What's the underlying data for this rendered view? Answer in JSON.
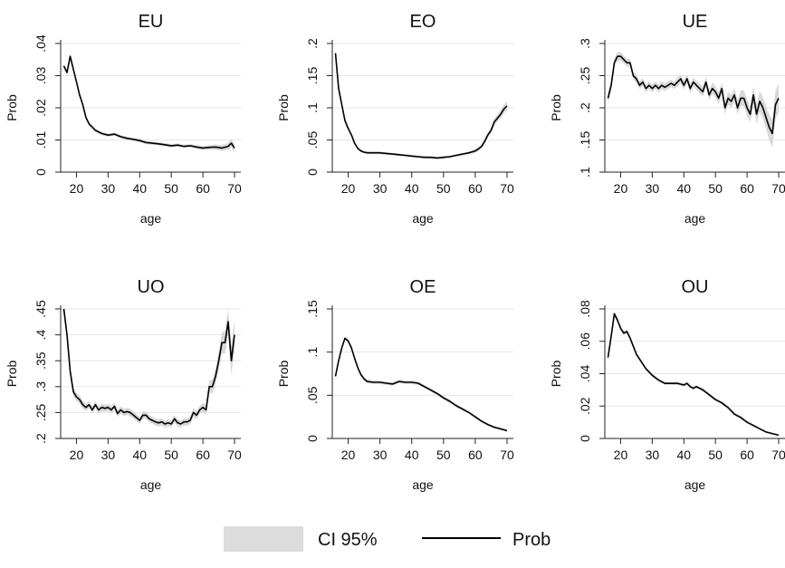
{
  "legend": {
    "ci_label": "CI 95%",
    "line_label": "Prob"
  },
  "style": {
    "band_color": "#d9d9d9",
    "line_color": "#000000",
    "grid_color": "#e6e6e6",
    "axis_color": "#222222"
  },
  "chart_data": [
    {
      "type": "line",
      "title": "EU",
      "xlabel": "age",
      "ylabel": "Prob",
      "xlim": [
        15,
        72
      ],
      "ylim": [
        0,
        0.04
      ],
      "xticks": [
        20,
        30,
        40,
        50,
        60,
        70
      ],
      "xtick_labels": [
        "20",
        "30",
        "40",
        "50",
        "60",
        "70"
      ],
      "yticks": [
        0,
        0.01,
        0.02,
        0.03,
        0.04
      ],
      "ytick_labels": [
        "0",
        ".01",
        ".02",
        ".03",
        ".04"
      ],
      "grid": true,
      "x": [
        16,
        17,
        18,
        19,
        20,
        21,
        22,
        23,
        24,
        25,
        26,
        28,
        30,
        32,
        34,
        36,
        38,
        40,
        42,
        44,
        46,
        48,
        50,
        52,
        54,
        56,
        58,
        60,
        62,
        64,
        66,
        68,
        69,
        70
      ],
      "y": [
        0.033,
        0.031,
        0.036,
        0.032,
        0.028,
        0.024,
        0.021,
        0.017,
        0.015,
        0.014,
        0.013,
        0.012,
        0.0115,
        0.0118,
        0.011,
        0.0105,
        0.0102,
        0.0098,
        0.0092,
        0.009,
        0.0088,
        0.0085,
        0.0082,
        0.0084,
        0.008,
        0.0082,
        0.0078,
        0.0075,
        0.0077,
        0.0078,
        0.0075,
        0.008,
        0.009,
        0.0075
      ],
      "ci_halfwidth": [
        0.0008,
        0.0008,
        0.0008,
        0.0007,
        0.0007,
        0.0007,
        0.0006,
        0.0006,
        0.0006,
        0.0005,
        0.0005,
        0.0005,
        0.0005,
        0.0005,
        0.0005,
        0.0005,
        0.0005,
        0.0005,
        0.0005,
        0.0005,
        0.0005,
        0.0005,
        0.0005,
        0.0005,
        0.0005,
        0.0005,
        0.0006,
        0.0006,
        0.0007,
        0.0008,
        0.0009,
        0.0011,
        0.0013,
        0.0014
      ],
      "series": [
        {
          "name": "Prob"
        }
      ]
    },
    {
      "type": "line",
      "title": "EO",
      "xlabel": "age",
      "ylabel": "Prob",
      "xlim": [
        15,
        72
      ],
      "ylim": [
        0,
        0.2
      ],
      "xticks": [
        20,
        30,
        40,
        50,
        60,
        70
      ],
      "xtick_labels": [
        "20",
        "30",
        "40",
        "50",
        "60",
        "70"
      ],
      "yticks": [
        0,
        0.05,
        0.1,
        0.15,
        0.2
      ],
      "ytick_labels": [
        "0",
        ".05",
        ".1",
        ".15",
        ".2"
      ],
      "grid": true,
      "x": [
        16,
        17,
        18,
        19,
        20,
        21,
        22,
        23,
        24,
        25,
        26,
        28,
        30,
        32,
        34,
        36,
        38,
        40,
        42,
        44,
        46,
        48,
        50,
        52,
        54,
        56,
        58,
        60,
        61,
        62,
        63,
        64,
        65,
        66,
        67,
        68,
        69,
        70
      ],
      "y": [
        0.185,
        0.13,
        0.105,
        0.08,
        0.068,
        0.058,
        0.045,
        0.037,
        0.033,
        0.031,
        0.03,
        0.03,
        0.03,
        0.029,
        0.028,
        0.027,
        0.026,
        0.025,
        0.024,
        0.023,
        0.023,
        0.022,
        0.023,
        0.024,
        0.026,
        0.028,
        0.03,
        0.033,
        0.036,
        0.04,
        0.048,
        0.058,
        0.065,
        0.078,
        0.084,
        0.09,
        0.098,
        0.103
      ],
      "ci_halfwidth": [
        0.004,
        0.004,
        0.003,
        0.003,
        0.003,
        0.002,
        0.002,
        0.002,
        0.002,
        0.002,
        0.002,
        0.002,
        0.002,
        0.002,
        0.002,
        0.002,
        0.002,
        0.002,
        0.002,
        0.002,
        0.002,
        0.002,
        0.002,
        0.002,
        0.002,
        0.002,
        0.002,
        0.003,
        0.003,
        0.003,
        0.004,
        0.004,
        0.005,
        0.005,
        0.006,
        0.006,
        0.007,
        0.007
      ],
      "series": [
        {
          "name": "Prob"
        }
      ]
    },
    {
      "type": "line",
      "title": "UE",
      "xlabel": "age",
      "ylabel": "Prob",
      "xlim": [
        15,
        72
      ],
      "ylim": [
        0.1,
        0.3
      ],
      "xticks": [
        20,
        30,
        40,
        50,
        60,
        70
      ],
      "xtick_labels": [
        "20",
        "30",
        "40",
        "50",
        "60",
        "70"
      ],
      "yticks": [
        0.1,
        0.15,
        0.2,
        0.25,
        0.3
      ],
      "ytick_labels": [
        ".1",
        ".15",
        ".2",
        ".25",
        ".3"
      ],
      "grid": true,
      "x": [
        16,
        17,
        18,
        19,
        20,
        21,
        22,
        23,
        24,
        25,
        26,
        27,
        28,
        29,
        30,
        31,
        32,
        33,
        34,
        35,
        36,
        37,
        38,
        39,
        40,
        41,
        42,
        43,
        44,
        45,
        46,
        47,
        48,
        49,
        50,
        51,
        52,
        53,
        54,
        55,
        56,
        57,
        58,
        59,
        60,
        61,
        62,
        63,
        64,
        65,
        66,
        67,
        68,
        69,
        70
      ],
      "y": [
        0.215,
        0.235,
        0.27,
        0.28,
        0.28,
        0.275,
        0.27,
        0.27,
        0.25,
        0.245,
        0.235,
        0.24,
        0.23,
        0.235,
        0.23,
        0.235,
        0.23,
        0.235,
        0.232,
        0.235,
        0.238,
        0.235,
        0.24,
        0.245,
        0.235,
        0.245,
        0.23,
        0.24,
        0.235,
        0.23,
        0.225,
        0.24,
        0.22,
        0.23,
        0.225,
        0.215,
        0.23,
        0.2,
        0.215,
        0.21,
        0.22,
        0.2,
        0.215,
        0.215,
        0.2,
        0.19,
        0.22,
        0.19,
        0.21,
        0.2,
        0.185,
        0.17,
        0.16,
        0.205,
        0.215
      ],
      "ci_halfwidth": [
        0.008,
        0.008,
        0.007,
        0.007,
        0.007,
        0.006,
        0.006,
        0.006,
        0.006,
        0.006,
        0.006,
        0.006,
        0.006,
        0.006,
        0.006,
        0.006,
        0.006,
        0.006,
        0.006,
        0.006,
        0.006,
        0.006,
        0.007,
        0.007,
        0.007,
        0.007,
        0.007,
        0.007,
        0.007,
        0.008,
        0.008,
        0.008,
        0.008,
        0.009,
        0.009,
        0.009,
        0.009,
        0.01,
        0.01,
        0.01,
        0.011,
        0.011,
        0.012,
        0.012,
        0.013,
        0.013,
        0.014,
        0.015,
        0.016,
        0.017,
        0.018,
        0.02,
        0.022,
        0.022,
        0.022
      ],
      "series": [
        {
          "name": "Prob"
        }
      ]
    },
    {
      "type": "line",
      "title": "UO",
      "xlabel": "age",
      "ylabel": "Prob",
      "xlim": [
        15,
        72
      ],
      "ylim": [
        0.2,
        0.45
      ],
      "xticks": [
        20,
        30,
        40,
        50,
        60,
        70
      ],
      "xtick_labels": [
        "20",
        "30",
        "40",
        "50",
        "60",
        "70"
      ],
      "yticks": [
        0.2,
        0.25,
        0.3,
        0.35,
        0.4,
        0.45
      ],
      "ytick_labels": [
        ".2",
        ".25",
        ".3",
        ".35",
        ".4",
        ".45"
      ],
      "grid": true,
      "x": [
        16,
        17,
        18,
        19,
        20,
        21,
        22,
        23,
        24,
        25,
        26,
        27,
        28,
        29,
        30,
        31,
        32,
        33,
        34,
        35,
        36,
        37,
        38,
        39,
        40,
        41,
        42,
        43,
        44,
        45,
        46,
        47,
        48,
        49,
        50,
        51,
        52,
        53,
        54,
        55,
        56,
        57,
        58,
        59,
        60,
        61,
        62,
        63,
        64,
        65,
        66,
        67,
        68,
        69,
        70
      ],
      "y": [
        0.45,
        0.4,
        0.33,
        0.29,
        0.28,
        0.275,
        0.265,
        0.26,
        0.265,
        0.255,
        0.265,
        0.255,
        0.26,
        0.258,
        0.26,
        0.255,
        0.262,
        0.248,
        0.255,
        0.25,
        0.252,
        0.25,
        0.245,
        0.24,
        0.235,
        0.245,
        0.245,
        0.238,
        0.235,
        0.232,
        0.23,
        0.232,
        0.228,
        0.23,
        0.228,
        0.238,
        0.23,
        0.228,
        0.232,
        0.232,
        0.235,
        0.25,
        0.245,
        0.255,
        0.26,
        0.255,
        0.3,
        0.3,
        0.32,
        0.35,
        0.385,
        0.385,
        0.425,
        0.35,
        0.4
      ],
      "ci_halfwidth": [
        0.012,
        0.011,
        0.01,
        0.009,
        0.008,
        0.008,
        0.008,
        0.007,
        0.007,
        0.007,
        0.007,
        0.007,
        0.007,
        0.007,
        0.007,
        0.007,
        0.007,
        0.007,
        0.007,
        0.007,
        0.007,
        0.007,
        0.007,
        0.007,
        0.007,
        0.007,
        0.007,
        0.007,
        0.007,
        0.007,
        0.007,
        0.007,
        0.007,
        0.007,
        0.007,
        0.007,
        0.007,
        0.007,
        0.007,
        0.007,
        0.008,
        0.008,
        0.008,
        0.008,
        0.009,
        0.01,
        0.012,
        0.013,
        0.015,
        0.017,
        0.02,
        0.022,
        0.025,
        0.028,
        0.03
      ],
      "series": [
        {
          "name": "Prob"
        }
      ]
    },
    {
      "type": "line",
      "title": "OE",
      "xlabel": "age",
      "ylabel": "Prob",
      "xlim": [
        15,
        72
      ],
      "ylim": [
        0,
        0.15
      ],
      "xticks": [
        20,
        30,
        40,
        50,
        60,
        70
      ],
      "xtick_labels": [
        "20",
        "30",
        "40",
        "50",
        "60",
        "70"
      ],
      "yticks": [
        0,
        0.05,
        0.1,
        0.15
      ],
      "ytick_labels": [
        "0",
        ".05",
        ".1",
        ".15"
      ],
      "grid": true,
      "x": [
        16,
        17,
        18,
        19,
        20,
        21,
        22,
        23,
        24,
        25,
        26,
        28,
        30,
        32,
        34,
        36,
        38,
        40,
        42,
        44,
        46,
        48,
        50,
        52,
        54,
        56,
        58,
        60,
        62,
        64,
        66,
        68,
        70
      ],
      "y": [
        0.072,
        0.09,
        0.105,
        0.116,
        0.113,
        0.105,
        0.093,
        0.082,
        0.074,
        0.069,
        0.066,
        0.065,
        0.065,
        0.064,
        0.063,
        0.066,
        0.065,
        0.065,
        0.064,
        0.06,
        0.056,
        0.052,
        0.047,
        0.043,
        0.038,
        0.034,
        0.03,
        0.025,
        0.02,
        0.016,
        0.013,
        0.011,
        0.009
      ],
      "ci_halfwidth": [
        0.002,
        0.002,
        0.002,
        0.002,
        0.002,
        0.002,
        0.002,
        0.002,
        0.002,
        0.002,
        0.002,
        0.002,
        0.002,
        0.002,
        0.002,
        0.002,
        0.002,
        0.002,
        0.002,
        0.002,
        0.002,
        0.002,
        0.002,
        0.002,
        0.002,
        0.002,
        0.0015,
        0.0015,
        0.0015,
        0.0015,
        0.0015,
        0.0015,
        0.0015
      ],
      "series": [
        {
          "name": "Prob"
        }
      ]
    },
    {
      "type": "line",
      "title": "OU",
      "xlabel": "age",
      "ylabel": "Prob",
      "xlim": [
        15,
        72
      ],
      "ylim": [
        0,
        0.08
      ],
      "xticks": [
        20,
        30,
        40,
        50,
        60,
        70
      ],
      "xtick_labels": [
        "20",
        "30",
        "40",
        "50",
        "60",
        "70"
      ],
      "yticks": [
        0,
        0.02,
        0.04,
        0.06,
        0.08
      ],
      "ytick_labels": [
        "0",
        ".02",
        ".04",
        ".06",
        ".08"
      ],
      "grid": true,
      "x": [
        16,
        17,
        18,
        19,
        20,
        21,
        22,
        23,
        24,
        25,
        26,
        28,
        30,
        32,
        34,
        36,
        38,
        40,
        41,
        42,
        43,
        44,
        46,
        48,
        50,
        52,
        54,
        56,
        58,
        60,
        62,
        64,
        66,
        68,
        70
      ],
      "y": [
        0.05,
        0.063,
        0.077,
        0.073,
        0.068,
        0.065,
        0.066,
        0.062,
        0.057,
        0.052,
        0.049,
        0.043,
        0.039,
        0.036,
        0.034,
        0.034,
        0.034,
        0.033,
        0.034,
        0.032,
        0.031,
        0.032,
        0.03,
        0.027,
        0.024,
        0.022,
        0.019,
        0.015,
        0.013,
        0.01,
        0.008,
        0.006,
        0.004,
        0.003,
        0.002
      ],
      "ci_halfwidth": [
        0.0015,
        0.0015,
        0.0015,
        0.0015,
        0.0012,
        0.0012,
        0.0012,
        0.0012,
        0.001,
        0.001,
        0.001,
        0.001,
        0.001,
        0.001,
        0.001,
        0.001,
        0.001,
        0.001,
        0.001,
        0.001,
        0.001,
        0.001,
        0.001,
        0.001,
        0.001,
        0.001,
        0.001,
        0.001,
        0.0008,
        0.0008,
        0.0008,
        0.0006,
        0.0006,
        0.0006,
        0.0006
      ],
      "series": [
        {
          "name": "Prob"
        }
      ]
    }
  ]
}
